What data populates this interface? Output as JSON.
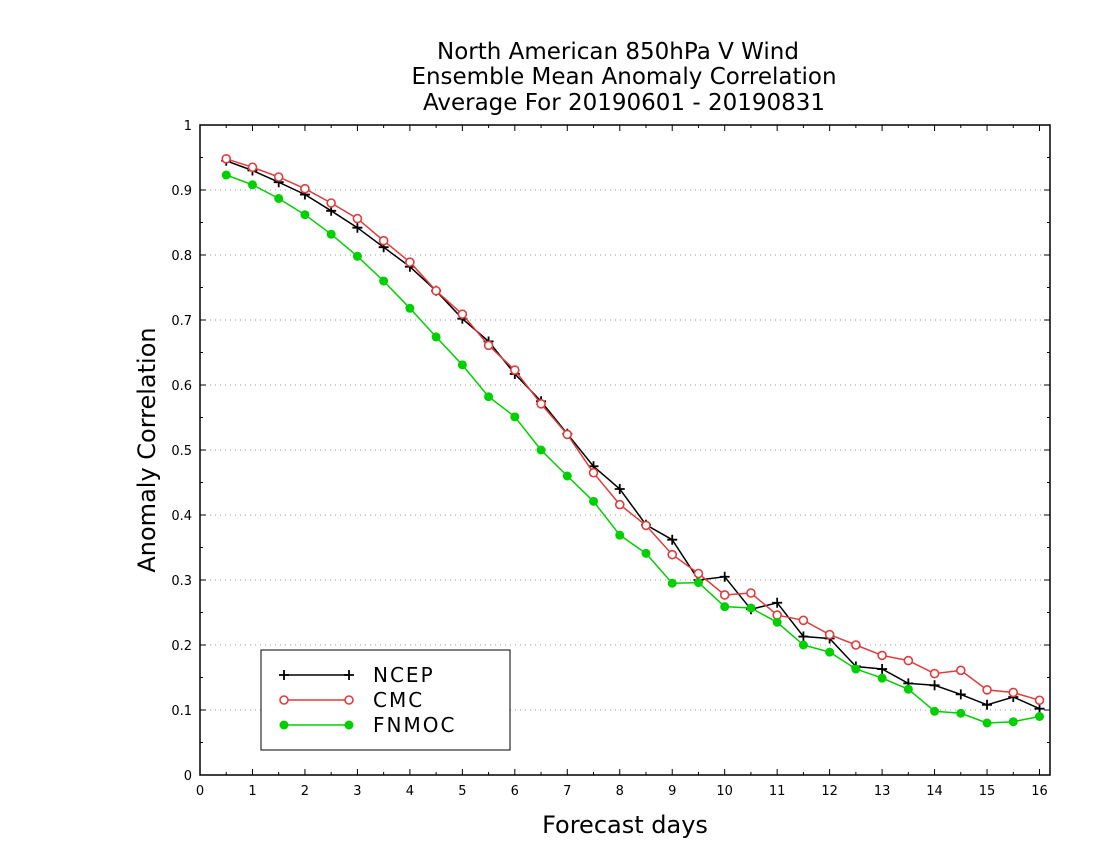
{
  "chart_data": {
    "type": "line",
    "title_lines": [
      "North American 850hPa V Wind",
      "Ensemble Mean Anomaly Correlation",
      "Average For 20190601 - 20190831"
    ],
    "xlabel": "Forecast days",
    "ylabel": "Anomaly Correlation",
    "xlim": [
      0,
      16.2
    ],
    "ylim": [
      0,
      1
    ],
    "x_ticks": [
      0,
      1,
      2,
      3,
      4,
      5,
      6,
      7,
      8,
      9,
      10,
      11,
      12,
      13,
      14,
      15,
      16
    ],
    "x_tick_labels": [
      "0",
      "1",
      "2",
      "3",
      "4",
      "5",
      "6",
      "7",
      "8",
      "9",
      "10",
      "11",
      "12",
      "13",
      "14",
      "15",
      "16"
    ],
    "y_ticks": [
      0,
      0.1,
      0.2,
      0.3,
      0.4,
      0.5,
      0.6,
      0.7,
      0.8,
      0.9,
      1
    ],
    "y_tick_labels": [
      "0",
      "0.1",
      "0.2",
      "0.3",
      "0.4",
      "0.5",
      "0.6",
      "0.7",
      "0.8",
      "0.9",
      "1"
    ],
    "grid": true,
    "legend_position": "bottom-left",
    "x": [
      0.5,
      1.0,
      1.5,
      2.0,
      2.5,
      3.0,
      3.5,
      4.0,
      4.5,
      5.0,
      5.5,
      6.0,
      6.5,
      7.0,
      7.5,
      8.0,
      8.5,
      9.0,
      9.5,
      10.0,
      10.5,
      11.0,
      11.5,
      12.0,
      12.5,
      13.0,
      13.5,
      14.0,
      14.5,
      15.0,
      15.5,
      16.0
    ],
    "series": [
      {
        "name": "NCEP",
        "color": "#000000",
        "marker": "plus",
        "values": [
          0.945,
          0.93,
          0.912,
          0.893,
          0.868,
          0.842,
          0.812,
          0.782,
          0.745,
          0.702,
          0.667,
          0.617,
          0.575,
          0.525,
          0.475,
          0.44,
          0.385,
          0.362,
          0.3,
          0.305,
          0.255,
          0.265,
          0.213,
          0.21,
          0.167,
          0.163,
          0.141,
          0.138,
          0.124,
          0.108,
          0.12,
          0.102
        ]
      },
      {
        "name": "CMC",
        "color": "#e03c3c",
        "marker": "open-circle",
        "values": [
          0.948,
          0.935,
          0.92,
          0.902,
          0.88,
          0.856,
          0.822,
          0.789,
          0.745,
          0.709,
          0.661,
          0.623,
          0.571,
          0.524,
          0.465,
          0.416,
          0.384,
          0.339,
          0.31,
          0.277,
          0.28,
          0.246,
          0.238,
          0.216,
          0.2,
          0.184,
          0.176,
          0.156,
          0.161,
          0.131,
          0.127,
          0.115
        ]
      },
      {
        "name": "FNMOC",
        "color": "#00d000",
        "marker": "filled-circle",
        "values": [
          0.923,
          0.908,
          0.887,
          0.862,
          0.832,
          0.798,
          0.76,
          0.718,
          0.674,
          0.631,
          0.582,
          0.551,
          0.5,
          0.46,
          0.421,
          0.369,
          0.341,
          0.295,
          0.296,
          0.259,
          0.257,
          0.235,
          0.2,
          0.189,
          0.163,
          0.149,
          0.132,
          0.098,
          0.095,
          0.08,
          0.082,
          0.09
        ]
      }
    ]
  }
}
